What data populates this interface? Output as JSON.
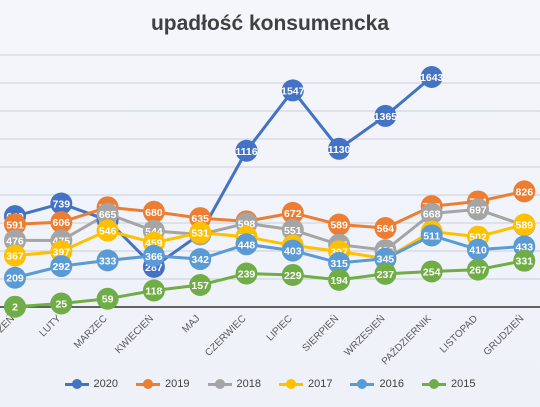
{
  "chart_data": {
    "type": "line",
    "title": "upadłość konsumencka",
    "categories": [
      "STYCZEŃ",
      "LUTY",
      "MARZEC",
      "KWIECIEŃ",
      "MAJ",
      "CZERWIEC",
      "LIPIEC",
      "SIERPIEŃ",
      "WRZESIEŃ",
      "PAŹDZIERNIK",
      "LISTOPAD",
      "GRUDZIEŃ"
    ],
    "xlabel": "",
    "ylabel": "",
    "ylim": [
      0,
      1800
    ],
    "grid": true,
    "legend_position": "bottom",
    "series": [
      {
        "name": "2020",
        "color": "#4472c4",
        "values": [
          649,
          739,
          620,
          287,
          522,
          1116,
          1547,
          1130,
          1365,
          1643,
          null,
          null
        ]
      },
      {
        "name": "2019",
        "color": "#ed7d31",
        "values": [
          591,
          606,
          712,
          680,
          635,
          612,
          672,
          589,
          564,
          720,
          754,
          826
        ]
      },
      {
        "name": "2018",
        "color": "#a5a5a5",
        "values": [
          476,
          475,
          665,
          544,
          518,
          598,
          551,
          445,
          406,
          668,
          697,
          583
        ]
      },
      {
        "name": "2017",
        "color": "#ffc000",
        "values": [
          367,
          397,
          546,
          459,
          531,
          501,
          439,
          397,
          345,
          539,
          502,
          589
        ]
      },
      {
        "name": "2016",
        "color": "#5b9bd5",
        "values": [
          209,
          292,
          333,
          366,
          342,
          448,
          403,
          315,
          345,
          511,
          410,
          433
        ]
      },
      {
        "name": "2015",
        "color": "#70ad47",
        "values": [
          2,
          25,
          59,
          118,
          157,
          239,
          229,
          194,
          237,
          254,
          267,
          331
        ]
      }
    ]
  }
}
